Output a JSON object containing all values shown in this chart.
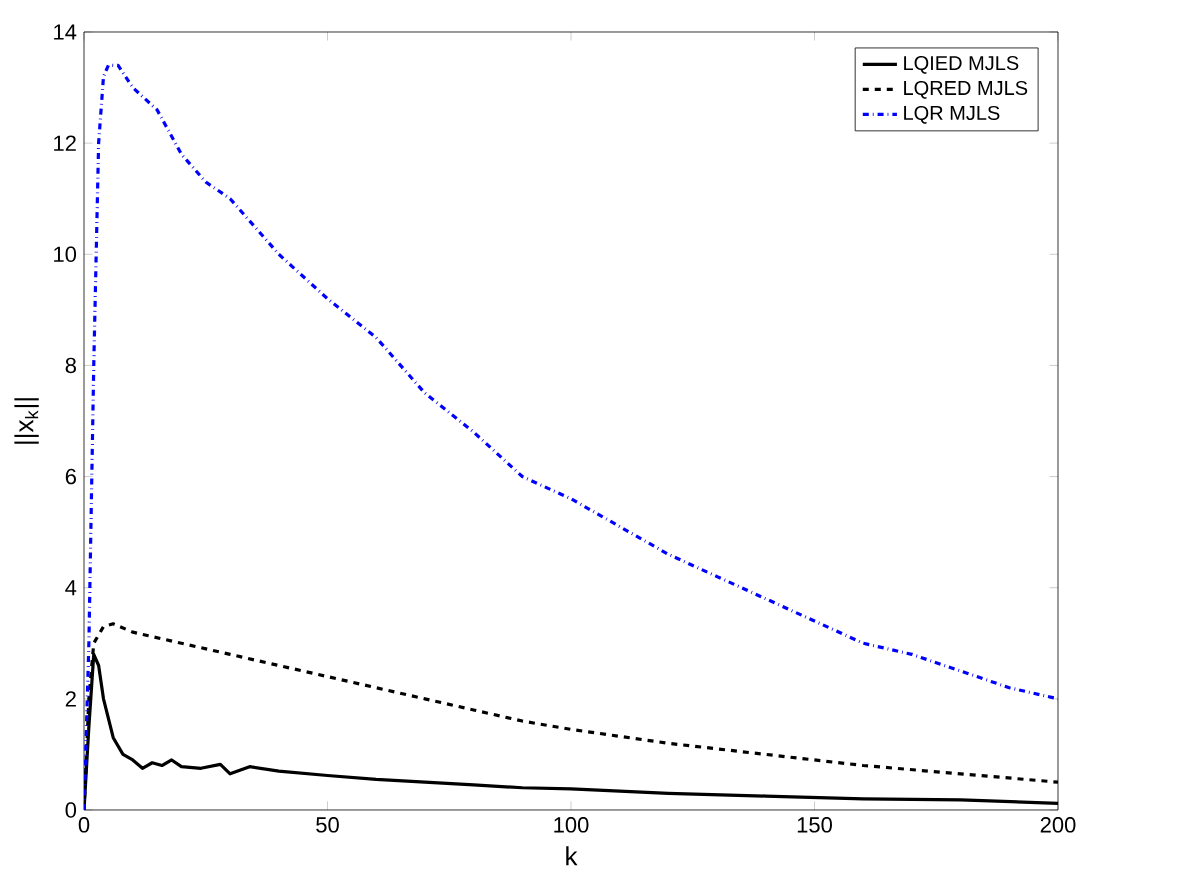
{
  "chart_data": {
    "type": "line",
    "xlabel": "k",
    "ylabel": "||x$_{k}$||",
    "xlim": [
      0,
      200
    ],
    "ylim": [
      0,
      14
    ],
    "xticks": [
      0,
      50,
      100,
      150,
      200
    ],
    "yticks": [
      0,
      2,
      4,
      6,
      8,
      10,
      12,
      14
    ],
    "grid": false,
    "legend": "top right",
    "marker": "none",
    "series": [
      {
        "name": "LQIED MJLS",
        "color": "#000000",
        "line_style": "solid",
        "x": [
          0,
          1,
          2,
          3,
          4,
          6,
          8,
          10,
          12,
          14,
          16,
          18,
          20,
          24,
          28,
          30,
          34,
          40,
          50,
          60,
          70,
          80,
          90,
          100,
          120,
          140,
          160,
          180,
          200
        ],
        "values": [
          0,
          1.5,
          2.8,
          2.6,
          2.0,
          1.3,
          1.0,
          0.9,
          0.75,
          0.85,
          0.8,
          0.9,
          0.78,
          0.75,
          0.82,
          0.65,
          0.78,
          0.7,
          0.62,
          0.55,
          0.5,
          0.45,
          0.4,
          0.38,
          0.3,
          0.25,
          0.2,
          0.18,
          0.12
        ]
      },
      {
        "name": "LQRED MJLS",
        "color": "#000000",
        "line_style": "dashed",
        "x": [
          0,
          1,
          2,
          4,
          6,
          10,
          20,
          30,
          40,
          50,
          60,
          70,
          80,
          90,
          100,
          120,
          140,
          160,
          180,
          200
        ],
        "values": [
          0,
          2,
          3.0,
          3.3,
          3.35,
          3.2,
          3.0,
          2.8,
          2.6,
          2.4,
          2.2,
          2.0,
          1.8,
          1.6,
          1.45,
          1.2,
          1.0,
          0.8,
          0.65,
          0.5
        ]
      },
      {
        "name": "LQR MJLS",
        "color": "#0000ff",
        "line_style": "dashdot",
        "x": [
          0,
          1,
          2,
          3,
          4,
          5,
          7,
          10,
          15,
          20,
          25,
          30,
          40,
          50,
          60,
          70,
          80,
          90,
          100,
          110,
          120,
          130,
          140,
          150,
          160,
          170,
          180,
          190,
          200
        ],
        "values": [
          0,
          3,
          8,
          12,
          13.2,
          13.4,
          13.4,
          13.0,
          12.6,
          11.8,
          11.3,
          11.0,
          10.0,
          9.2,
          8.5,
          7.5,
          6.8,
          6.0,
          5.6,
          5.1,
          4.6,
          4.2,
          3.8,
          3.4,
          3.0,
          2.8,
          2.5,
          2.2,
          2.0
        ]
      }
    ]
  }
}
